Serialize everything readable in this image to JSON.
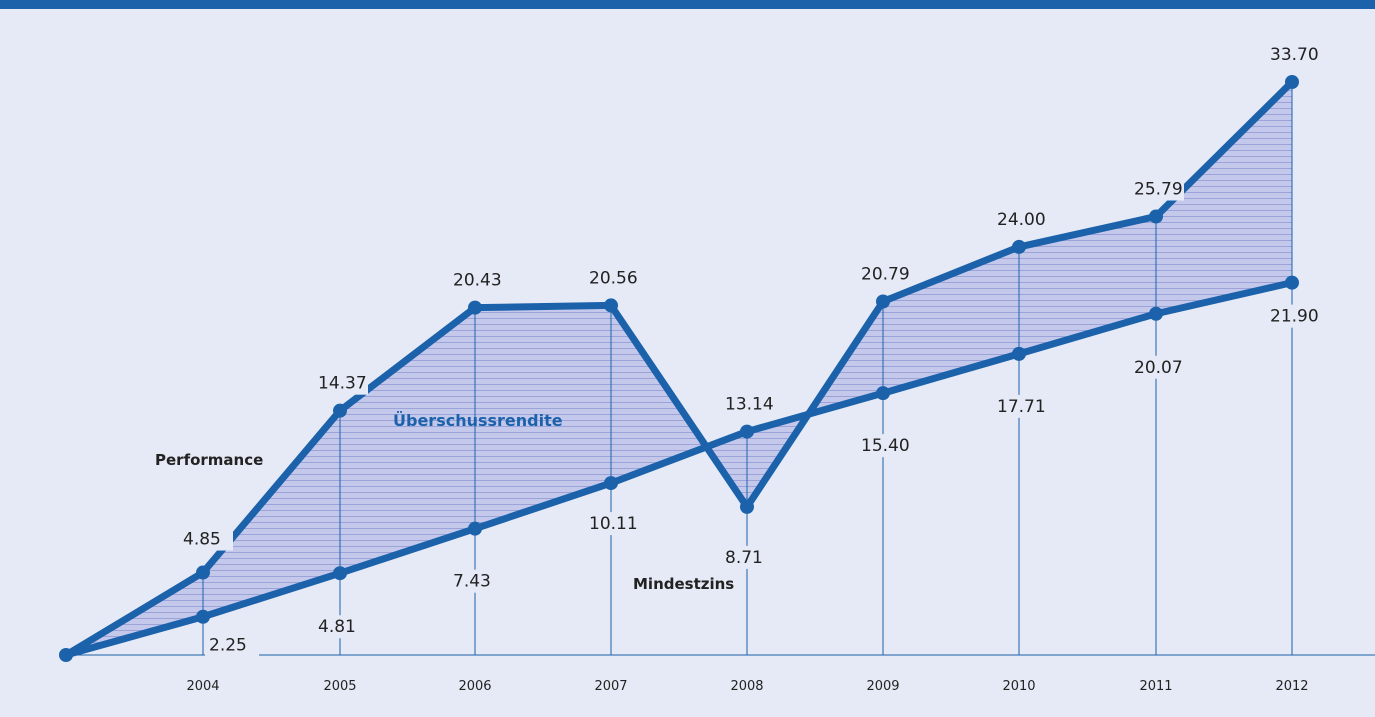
{
  "chart_data": {
    "type": "line",
    "categories": [
      "",
      "2004",
      "2005",
      "2006",
      "2007",
      "2008",
      "2009",
      "2010",
      "2011",
      "2012"
    ],
    "series": [
      {
        "name": "Performance",
        "values": [
          0,
          4.85,
          14.37,
          20.43,
          20.56,
          8.71,
          20.79,
          24.0,
          25.79,
          33.7
        ],
        "labels": [
          "",
          "4.85",
          "14.37",
          "20.43",
          "20.56",
          "8.71",
          "20.79",
          "24.00",
          "25.79",
          "33.70"
        ]
      },
      {
        "name": "Mindestzins",
        "values": [
          0,
          2.25,
          4.81,
          7.43,
          10.11,
          13.14,
          15.4,
          17.71,
          20.07,
          21.9
        ],
        "labels": [
          "",
          "2.25",
          "4.81",
          "7.43",
          "10.11",
          "13.14",
          "15.40",
          "17.71",
          "20.07",
          "21.90"
        ]
      }
    ],
    "area_label": "Überschussrendite",
    "ylim": [
      0,
      33.7
    ],
    "grid": false,
    "legend": "inline"
  },
  "colors": {
    "background": "#e6eaf6",
    "line": "#1b62ab",
    "fill": "#c4c9ec",
    "hatch": "#9ba3d8",
    "accent_text": "#1b62ab",
    "text": "#222222"
  }
}
